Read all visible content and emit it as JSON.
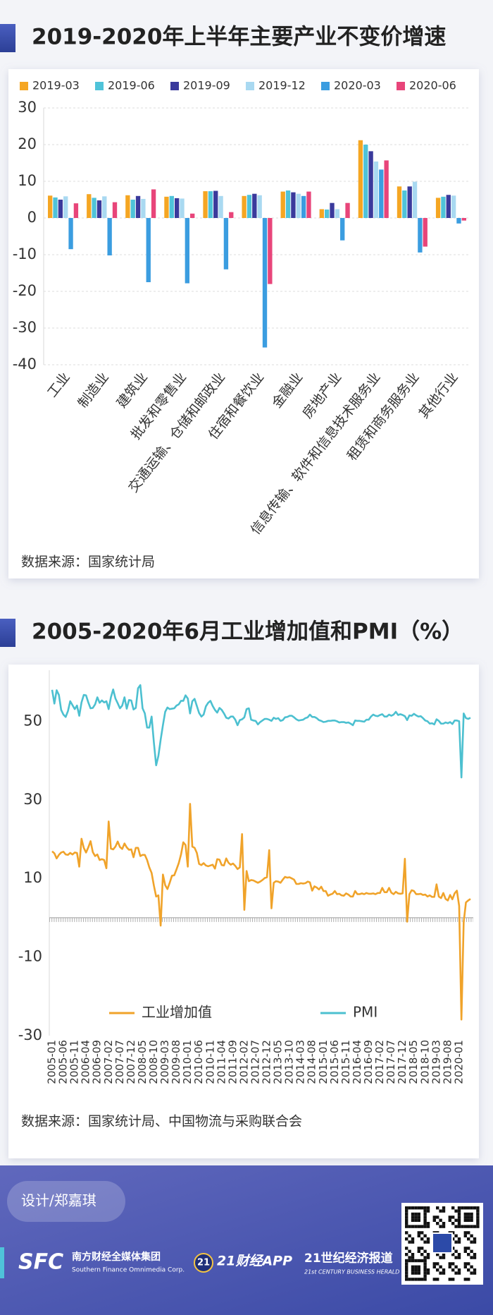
{
  "chart_data": [
    {
      "type": "bar",
      "title": "2019-2020年上半年主要产业不变价增速",
      "categories": [
        "工业",
        "制造业",
        "建筑业",
        "批发和零售业",
        "交通运输、仓储和邮政业",
        "住宿和餐饮业",
        "金融业",
        "房地产业",
        "信息传输、软件和信息技术服务业",
        "租赁和商务服务业",
        "其他行业"
      ],
      "series": [
        {
          "name": "2019-03",
          "color": "#f5a623",
          "values": [
            6.1,
            6.5,
            6.2,
            5.8,
            7.3,
            6.0,
            7.2,
            2.4,
            21.2,
            8.6,
            5.5
          ]
        },
        {
          "name": "2019-06",
          "color": "#4fc3d9",
          "values": [
            5.6,
            5.5,
            5.0,
            6.0,
            7.3,
            6.3,
            7.5,
            2.3,
            20.0,
            7.5,
            5.8
          ]
        },
        {
          "name": "2019-09",
          "color": "#3a3a9c",
          "values": [
            5.0,
            4.8,
            6.0,
            5.4,
            7.4,
            6.6,
            7.0,
            4.1,
            18.2,
            8.6,
            6.3
          ]
        },
        {
          "name": "2019-12",
          "color": "#a9d9f1",
          "values": [
            5.9,
            5.9,
            5.2,
            5.3,
            6.0,
            6.2,
            6.6,
            2.4,
            15.4,
            9.9,
            6.1
          ]
        },
        {
          "name": "2020-03",
          "color": "#3b9de0",
          "values": [
            -8.5,
            -10.2,
            -17.5,
            -17.8,
            -14.0,
            -35.3,
            6.0,
            -6.1,
            13.2,
            -9.4,
            -1.5
          ]
        },
        {
          "name": "2020-06",
          "color": "#e8457a",
          "values": [
            4.0,
            4.3,
            7.8,
            1.2,
            1.6,
            -18.0,
            7.2,
            4.1,
            15.7,
            -7.8,
            -0.7
          ]
        }
      ],
      "ylim": [
        -40,
        30
      ],
      "yticks": [
        -40,
        -30,
        -20,
        -10,
        0,
        10,
        20,
        30
      ],
      "grid": true,
      "legend": "top",
      "source": "数据来源：国家统计局"
    },
    {
      "type": "line",
      "title": "2005-2020年6月工业增加值和PMI（%）",
      "categories": [
        "2005-01",
        null,
        null,
        null,
        null,
        "2005-06",
        null,
        null,
        null,
        null,
        "2005-11",
        null,
        null,
        null,
        null,
        "2006-04",
        null,
        null,
        null,
        null,
        "2006-09",
        null,
        null,
        null,
        null,
        "2007-02",
        null,
        null,
        null,
        null,
        "2007-07",
        null,
        null,
        null,
        null,
        "2007-12",
        null,
        null,
        null,
        null,
        "2008-05",
        null,
        null,
        null,
        null,
        "2008-10",
        null,
        null,
        null,
        null,
        "2009-03",
        null,
        null,
        null,
        null,
        "2009-08",
        null,
        null,
        null,
        null,
        "2010-01",
        null,
        null,
        null,
        null,
        "2010-06",
        null,
        null,
        null,
        null,
        "2010-11",
        null,
        null,
        null,
        null,
        "2011-04",
        null,
        null,
        null,
        null,
        "2011-09",
        null,
        null,
        null,
        null,
        "2012-02",
        null,
        null,
        null,
        null,
        "2012-07",
        null,
        null,
        null,
        null,
        "2012-12",
        null,
        null,
        null,
        null,
        "2013-05",
        null,
        null,
        null,
        null,
        "2013-10",
        null,
        null,
        null,
        null,
        "2014-03",
        null,
        null,
        null,
        null,
        "2014-08",
        null,
        null,
        null,
        null,
        "2015-01",
        null,
        null,
        null,
        null,
        "2015-06",
        null,
        null,
        null,
        null,
        "2015-11",
        null,
        null,
        null,
        null,
        "2016-04",
        null,
        null,
        null,
        null,
        "2016-09",
        null,
        null,
        null,
        null,
        "2017-02",
        null,
        null,
        null,
        null,
        "2017-07",
        null,
        null,
        null,
        null,
        "2017-12",
        null,
        null,
        null,
        null,
        "2018-05",
        null,
        null,
        null,
        null,
        "2018-10",
        null,
        null,
        null,
        null,
        "2019-03",
        null,
        null,
        null,
        null,
        "2019-08",
        null,
        null,
        null,
        null,
        "2020-01",
        null,
        null,
        null,
        null,
        null
      ],
      "series": [
        {
          "name": "工业增加值",
          "color": "#f0a32a",
          "values": [
            16.9,
            16.4,
            15.1,
            16.0,
            16.6,
            16.8,
            16.1,
            16.0,
            16.5,
            16.1,
            16.6,
            16.5,
            13.0,
            20.1,
            17.8,
            16.6,
            17.9,
            19.5,
            16.7,
            15.7,
            16.1,
            14.7,
            14.9,
            14.7,
            12.6,
            24.5,
            17.6,
            17.4,
            18.1,
            19.4,
            18.0,
            17.5,
            18.9,
            17.9,
            17.3,
            17.4,
            15.4,
            17.8,
            17.8,
            15.7,
            16.0,
            16.0,
            14.7,
            12.8,
            11.4,
            8.2,
            5.4,
            5.7,
            -2.0,
            11.0,
            8.3,
            7.3,
            8.9,
            10.7,
            10.8,
            12.3,
            13.9,
            16.1,
            19.2,
            18.5,
            13.0,
            29.0,
            18.1,
            17.8,
            16.5,
            13.7,
            13.4,
            13.9,
            13.3,
            13.1,
            13.3,
            13.5,
            12.5,
            14.9,
            14.8,
            13.4,
            13.3,
            15.1,
            14.0,
            13.5,
            13.8,
            13.2,
            12.4,
            12.8,
            21.3,
            2.0,
            11.9,
            9.3,
            9.6,
            9.5,
            9.2,
            8.9,
            9.2,
            9.6,
            10.1,
            10.3,
            17.2,
            2.4,
            8.9,
            9.3,
            9.2,
            8.9,
            9.7,
            10.4,
            10.2,
            10.3,
            10.0,
            9.7,
            8.6,
            8.6,
            8.8,
            8.7,
            8.8,
            9.2,
            9.0,
            6.9,
            8.0,
            7.7,
            7.2,
            7.9,
            6.8,
            6.8,
            5.6,
            5.9,
            6.1,
            6.8,
            6.0,
            6.1,
            5.7,
            5.6,
            6.2,
            5.9,
            5.4,
            5.4,
            6.8,
            6.0,
            6.0,
            6.2,
            6.0,
            6.3,
            6.1,
            6.1,
            6.2,
            6.0,
            6.3,
            6.3,
            7.6,
            6.5,
            6.5,
            7.6,
            6.4,
            6.0,
            6.6,
            6.2,
            6.1,
            6.2,
            15.0,
            -1.0,
            6.0,
            7.0,
            6.8,
            6.0,
            6.0,
            6.1,
            5.8,
            5.9,
            5.4,
            5.7,
            5.3,
            5.3,
            8.5,
            5.4,
            5.0,
            6.3,
            4.8,
            4.4,
            5.8,
            4.7,
            6.2,
            6.9,
            3.0,
            -25.9,
            -1.1,
            3.9,
            4.4,
            4.8
          ]
        },
        {
          "name": "PMI",
          "color": "#4cc0d0",
          "values": [
            58.0,
            54.5,
            57.9,
            56.7,
            52.9,
            51.7,
            51.1,
            52.6,
            55.1,
            54.1,
            53.1,
            54.0,
            51.4,
            54.8,
            56.7,
            56.6,
            54.8,
            53.3,
            53.4,
            54.3,
            56.1,
            54.7,
            55.3,
            54.8,
            55.1,
            53.1,
            56.1,
            58.1,
            55.8,
            54.6,
            53.3,
            54.0,
            56.1,
            53.2,
            55.4,
            55.3,
            53.0,
            53.4,
            58.4,
            59.2,
            53.3,
            52.0,
            48.4,
            48.4,
            51.2,
            44.6,
            38.8,
            41.2,
            45.3,
            49.0,
            52.4,
            53.5,
            53.1,
            53.2,
            53.3,
            54.0,
            54.3,
            55.2,
            55.2,
            56.6,
            55.8,
            52.0,
            55.1,
            55.7,
            53.9,
            52.1,
            51.2,
            51.7,
            53.8,
            54.7,
            55.2,
            53.9,
            52.9,
            52.2,
            53.4,
            52.9,
            52.0,
            50.9,
            50.7,
            51.2,
            51.2,
            50.4,
            49.0,
            50.3,
            50.5,
            51.0,
            53.1,
            53.3,
            50.4,
            50.2,
            50.1,
            49.2,
            49.8,
            50.2,
            50.6,
            50.6,
            50.4,
            50.1,
            50.9,
            50.6,
            50.8,
            50.1,
            50.3,
            51.0,
            51.1,
            51.4,
            51.4,
            51.0,
            50.5,
            50.2,
            50.3,
            50.4,
            50.8,
            51.0,
            51.7,
            51.1,
            51.1,
            50.8,
            50.3,
            50.1,
            49.8,
            49.9,
            50.1,
            50.1,
            50.2,
            50.2,
            50.0,
            49.7,
            49.8,
            49.8,
            49.6,
            49.7,
            49.4,
            49.0,
            50.2,
            50.1,
            50.1,
            50.0,
            49.9,
            50.4,
            50.4,
            51.2,
            51.7,
            51.4,
            51.3,
            51.6,
            51.8,
            51.2,
            51.2,
            51.7,
            51.4,
            51.7,
            52.4,
            51.6,
            51.8,
            51.6,
            51.3,
            50.3,
            51.5,
            51.4,
            51.9,
            51.5,
            51.2,
            51.3,
            50.8,
            50.2,
            50.0,
            49.4,
            49.5,
            49.2,
            50.5,
            50.1,
            49.4,
            49.4,
            49.7,
            49.5,
            49.8,
            49.3,
            50.2,
            50.2,
            50.0,
            35.7,
            52.0,
            50.8,
            50.6,
            50.9
          ]
        }
      ],
      "ylim": [
        -30,
        63
      ],
      "yticks": [
        -30,
        -10,
        10,
        30,
        50
      ],
      "grid": false,
      "legend": "bottom",
      "source": "数据来源：国家统计局、中国物流与采购联合会"
    }
  ],
  "footer": {
    "designer": "设计/郑嘉琪",
    "sfc": "SFC",
    "group_cn": "南方财经全媒体集团",
    "group_en": "Southern Finance Omnimedia Corp.",
    "app_badge": "21",
    "app": "21财经APP",
    "herald_cn": "21世纪经济报道",
    "herald_en": "21st CENTURY BUSINESS HERALD"
  }
}
